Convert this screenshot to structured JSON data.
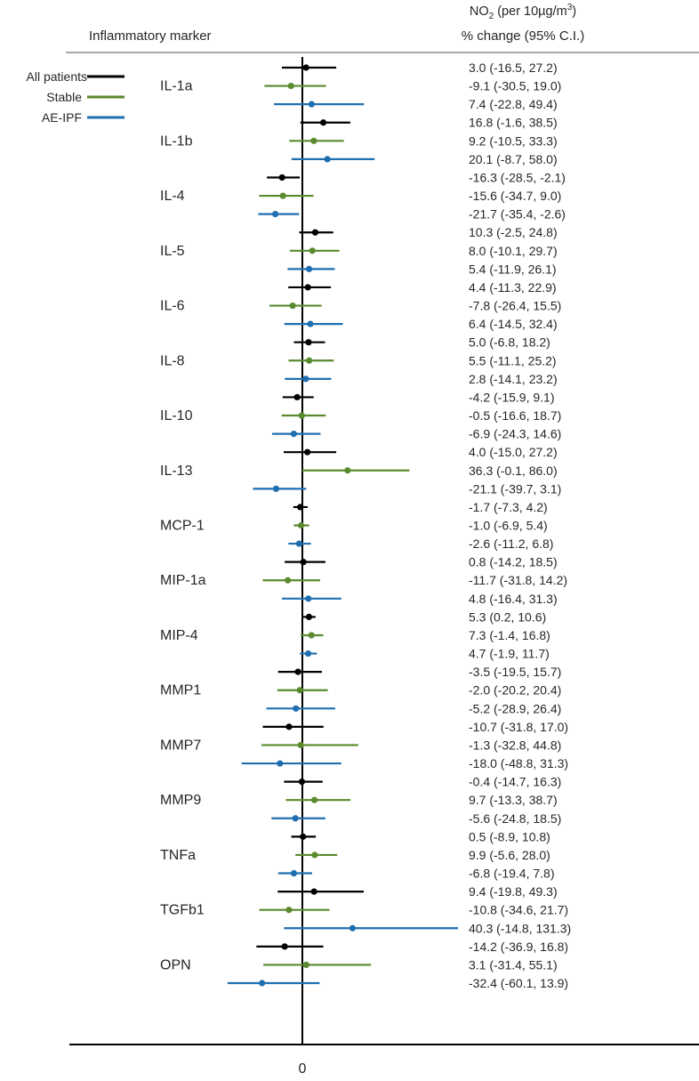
{
  "chart_data": {
    "type": "forest",
    "header": {
      "left": "Inflammatory marker",
      "right_line1_prefix": "NO",
      "right_line1_sub": "2",
      "right_line1_middle": " (per 10µg/m",
      "right_line1_sup": "3",
      "right_line1_suffix": ")",
      "right_line2": "% change (95% C.I.)"
    },
    "x_ticks": [
      "0"
    ],
    "xlim": [
      -90,
      180
    ],
    "legend": {
      "placement": "top-left",
      "items": [
        {
          "label": "All patients",
          "color": "#000000"
        },
        {
          "label": "Stable",
          "color": "#5a8a2e"
        },
        {
          "label": "AE-IPF",
          "color": "#1f6fb0"
        }
      ]
    },
    "series": [
      {
        "name": "All patients",
        "color": "#000000"
      },
      {
        "name": "Stable",
        "color": "#5a8a2e"
      },
      {
        "name": "AE-IPF",
        "color": "#1f6fb0"
      }
    ],
    "markers": [
      {
        "name": "IL-1a",
        "rows": [
          {
            "est": 3.0,
            "lo": -16.5,
            "hi": 27.2,
            "text": "3.0 (-16.5, 27.2)"
          },
          {
            "est": -9.1,
            "lo": -30.5,
            "hi": 19.0,
            "text": "-9.1 (-30.5, 19.0)"
          },
          {
            "est": 7.4,
            "lo": -22.8,
            "hi": 49.4,
            "text": "7.4 (-22.8, 49.4)"
          }
        ]
      },
      {
        "name": "IL-1b",
        "rows": [
          {
            "est": 16.8,
            "lo": -1.6,
            "hi": 38.5,
            "text": "16.8 (-1.6, 38.5)"
          },
          {
            "est": 9.2,
            "lo": -10.5,
            "hi": 33.3,
            "text": "9.2 (-10.5, 33.3)"
          },
          {
            "est": 20.1,
            "lo": -8.7,
            "hi": 58.0,
            "text": "20.1 (-8.7, 58.0)"
          }
        ]
      },
      {
        "name": "IL-4",
        "rows": [
          {
            "est": -16.3,
            "lo": -28.5,
            "hi": -2.1,
            "text": "-16.3 (-28.5, -2.1)"
          },
          {
            "est": -15.6,
            "lo": -34.7,
            "hi": 9.0,
            "text": "-15.6 (-34.7, 9.0)"
          },
          {
            "est": -21.7,
            "lo": -35.4,
            "hi": -2.6,
            "text": "-21.7 (-35.4, -2.6)"
          }
        ]
      },
      {
        "name": "IL-5",
        "rows": [
          {
            "est": 10.3,
            "lo": -2.5,
            "hi": 24.8,
            "text": "10.3 (-2.5, 24.8)"
          },
          {
            "est": 8.0,
            "lo": -10.1,
            "hi": 29.7,
            "text": "8.0 (-10.1, 29.7)"
          },
          {
            "est": 5.4,
            "lo": -11.9,
            "hi": 26.1,
            "text": "5.4 (-11.9, 26.1)"
          }
        ]
      },
      {
        "name": "IL-6",
        "rows": [
          {
            "est": 4.4,
            "lo": -11.3,
            "hi": 22.9,
            "text": "4.4 (-11.3, 22.9)"
          },
          {
            "est": -7.8,
            "lo": -26.4,
            "hi": 15.5,
            "text": "-7.8 (-26.4, 15.5)"
          },
          {
            "est": 6.4,
            "lo": -14.5,
            "hi": 32.4,
            "text": "6.4 (-14.5, 32.4)"
          }
        ]
      },
      {
        "name": "IL-8",
        "rows": [
          {
            "est": 5.0,
            "lo": -6.8,
            "hi": 18.2,
            "text": "5.0 (-6.8, 18.2)"
          },
          {
            "est": 5.5,
            "lo": -11.1,
            "hi": 25.2,
            "text": "5.5 (-11.1, 25.2)"
          },
          {
            "est": 2.8,
            "lo": -14.1,
            "hi": 23.2,
            "text": "2.8 (-14.1, 23.2)"
          }
        ]
      },
      {
        "name": "IL-10",
        "rows": [
          {
            "est": -4.2,
            "lo": -15.9,
            "hi": 9.1,
            "text": "-4.2 (-15.9, 9.1)"
          },
          {
            "est": -0.5,
            "lo": -16.6,
            "hi": 18.7,
            "text": "-0.5 (-16.6, 18.7)"
          },
          {
            "est": -6.9,
            "lo": -24.3,
            "hi": 14.6,
            "text": "-6.9 (-24.3, 14.6)"
          }
        ]
      },
      {
        "name": "IL-13",
        "rows": [
          {
            "est": 4.0,
            "lo": -15.0,
            "hi": 27.2,
            "text": "4.0 (-15.0, 27.2)"
          },
          {
            "est": 36.3,
            "lo": -0.1,
            "hi": 86.0,
            "text": "36.3 (-0.1, 86.0)"
          },
          {
            "est": -21.1,
            "lo": -39.7,
            "hi": 3.1,
            "text": "-21.1 (-39.7, 3.1)"
          }
        ]
      },
      {
        "name": "MCP-1",
        "rows": [
          {
            "est": -1.7,
            "lo": -7.3,
            "hi": 4.2,
            "text": "-1.7 (-7.3, 4.2)"
          },
          {
            "est": -1.0,
            "lo": -6.9,
            "hi": 5.4,
            "text": "-1.0 (-6.9, 5.4)"
          },
          {
            "est": -2.6,
            "lo": -11.2,
            "hi": 6.8,
            "text": "-2.6 (-11.2, 6.8)"
          }
        ]
      },
      {
        "name": "MIP-1a",
        "rows": [
          {
            "est": 0.8,
            "lo": -14.2,
            "hi": 18.5,
            "text": "0.8 (-14.2, 18.5)"
          },
          {
            "est": -11.7,
            "lo": -31.8,
            "hi": 14.2,
            "text": "-11.7 (-31.8, 14.2)"
          },
          {
            "est": 4.8,
            "lo": -16.4,
            "hi": 31.3,
            "text": "4.8 (-16.4, 31.3)"
          }
        ]
      },
      {
        "name": "MIP-4",
        "rows": [
          {
            "est": 5.3,
            "lo": 0.2,
            "hi": 10.6,
            "text": "5.3 (0.2, 10.6)"
          },
          {
            "est": 7.3,
            "lo": -1.4,
            "hi": 16.8,
            "text": "7.3 (-1.4, 16.8)"
          },
          {
            "est": 4.7,
            "lo": -1.9,
            "hi": 11.7,
            "text": "4.7 (-1.9, 11.7)"
          }
        ]
      },
      {
        "name": "MMP1",
        "rows": [
          {
            "est": -3.5,
            "lo": -19.5,
            "hi": 15.7,
            "text": "-3.5 (-19.5, 15.7)"
          },
          {
            "est": -2.0,
            "lo": -20.2,
            "hi": 20.4,
            "text": "-2.0 (-20.2, 20.4)"
          },
          {
            "est": -5.2,
            "lo": -28.9,
            "hi": 26.4,
            "text": "-5.2 (-28.9, 26.4)"
          }
        ]
      },
      {
        "name": "MMP7",
        "rows": [
          {
            "est": -10.7,
            "lo": -31.8,
            "hi": 17.0,
            "text": "-10.7 (-31.8, 17.0)"
          },
          {
            "est": -1.3,
            "lo": -32.8,
            "hi": 44.8,
            "text": "-1.3 (-32.8, 44.8)"
          },
          {
            "est": -18.0,
            "lo": -48.8,
            "hi": 31.3,
            "text": "-18.0 (-48.8, 31.3)"
          }
        ]
      },
      {
        "name": "MMP9",
        "rows": [
          {
            "est": -0.4,
            "lo": -14.7,
            "hi": 16.3,
            "text": "-0.4 (-14.7, 16.3)"
          },
          {
            "est": 9.7,
            "lo": -13.3,
            "hi": 38.7,
            "text": "9.7 (-13.3, 38.7)"
          },
          {
            "est": -5.6,
            "lo": -24.8,
            "hi": 18.5,
            "text": "-5.6 (-24.8, 18.5)"
          }
        ]
      },
      {
        "name": "TNFa",
        "rows": [
          {
            "est": 0.5,
            "lo": -8.9,
            "hi": 10.8,
            "text": "0.5 (-8.9, 10.8)"
          },
          {
            "est": 9.9,
            "lo": -5.6,
            "hi": 28.0,
            "text": "9.9 (-5.6, 28.0)"
          },
          {
            "est": -6.8,
            "lo": -19.4,
            "hi": 7.8,
            "text": "-6.8 (-19.4, 7.8)"
          }
        ]
      },
      {
        "name": "TGFb1",
        "rows": [
          {
            "est": 9.4,
            "lo": -19.8,
            "hi": 49.3,
            "text": "9.4 (-19.8, 49.3)"
          },
          {
            "est": -10.8,
            "lo": -34.6,
            "hi": 21.7,
            "text": "-10.8 (-34.6, 21.7)"
          },
          {
            "est": 40.3,
            "lo": -14.8,
            "hi": 131.3,
            "text": "40.3 (-14.8, 131.3)"
          }
        ]
      },
      {
        "name": "OPN",
        "rows": [
          {
            "est": -14.2,
            "lo": -36.9,
            "hi": 16.8,
            "text": "-14.2 (-36.9, 16.8)"
          },
          {
            "est": 3.1,
            "lo": -31.4,
            "hi": 55.1,
            "text": "3.1 (-31.4, 55.1)"
          },
          {
            "est": -32.4,
            "lo": -60.1,
            "hi": 13.9,
            "text": "-32.4 (-60.1, 13.9)"
          }
        ]
      }
    ]
  }
}
